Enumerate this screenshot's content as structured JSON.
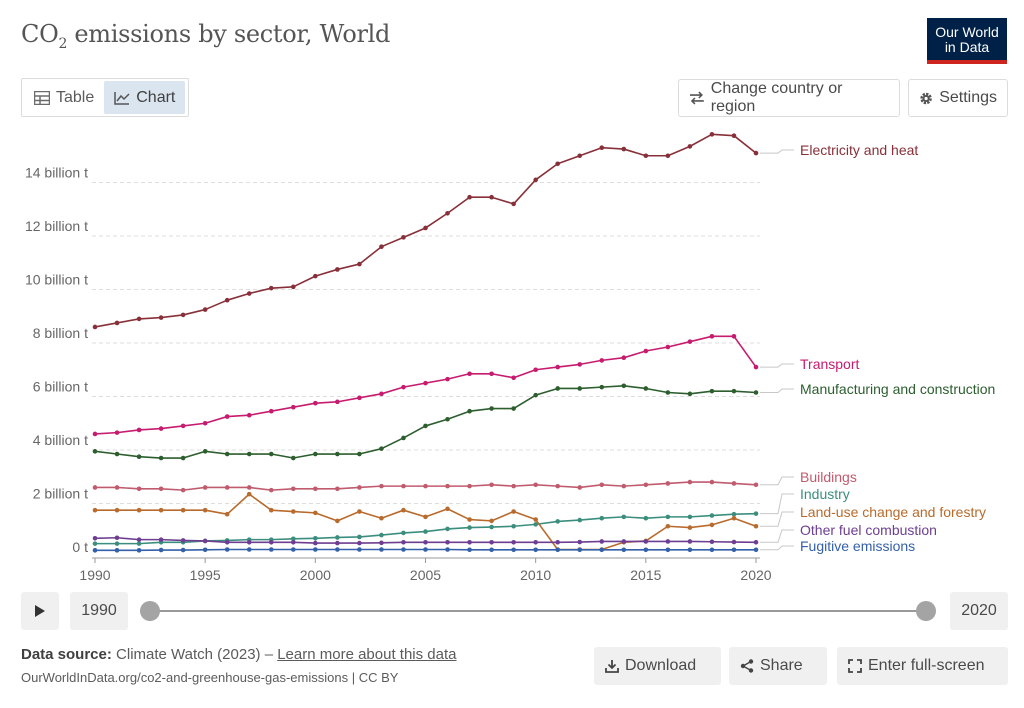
{
  "header": {
    "title_main": "CO",
    "title_sub": "2",
    "title_rest": " emissions by sector, World",
    "logo_line1": "Our World",
    "logo_line2": "in Data"
  },
  "tabs": [
    {
      "label": "Table",
      "icon": "table-icon"
    },
    {
      "label": "Chart",
      "icon": "line-chart-icon"
    }
  ],
  "toolbar": {
    "change_region_label": "Change country or region",
    "settings_label": "Settings"
  },
  "timeline": {
    "start_year": "1990",
    "end_year": "2020",
    "start_fraction": 0,
    "end_fraction": 1
  },
  "footer": {
    "source_label": "Data source:",
    "source_value": " Climate Watch (2023) – ",
    "learn_more": "Learn more about this data",
    "url": "OurWorldInData.org/co2-and-greenhouse-gas-emissions | CC BY",
    "download_label": "Download",
    "share_label": "Share",
    "fullscreen_label": "Enter full-screen"
  },
  "chart_data": {
    "type": "line",
    "x": [
      1990,
      1991,
      1992,
      1993,
      1994,
      1995,
      1996,
      1997,
      1998,
      1999,
      2000,
      2001,
      2002,
      2003,
      2004,
      2005,
      2006,
      2007,
      2008,
      2009,
      2010,
      2011,
      2012,
      2013,
      2014,
      2015,
      2016,
      2017,
      2018,
      2019,
      2020
    ],
    "xticks": [
      "1990",
      "1995",
      "2000",
      "2005",
      "2010",
      "2015",
      "2020"
    ],
    "yticks": [
      {
        "v": 0,
        "label": "0 t"
      },
      {
        "v": 2,
        "label": "2 billion t"
      },
      {
        "v": 4,
        "label": "4 billion t"
      },
      {
        "v": 6,
        "label": "6 billion t"
      },
      {
        "v": 8,
        "label": "8 billion t"
      },
      {
        "v": 10,
        "label": "10 billion t"
      },
      {
        "v": 12,
        "label": "12 billion t"
      },
      {
        "v": 14,
        "label": "14 billion t"
      }
    ],
    "ylim": [
      0,
      16
    ],
    "xlim": [
      1990,
      2020
    ],
    "grid": true,
    "legend": "right-labels",
    "series": [
      {
        "name": "Electricity and heat",
        "color": "#883039",
        "values": [
          8.6,
          8.75,
          8.9,
          8.95,
          9.05,
          9.25,
          9.6,
          9.85,
          10.05,
          10.1,
          10.5,
          10.75,
          10.95,
          11.6,
          11.95,
          12.3,
          12.85,
          13.45,
          13.45,
          13.2,
          14.1,
          14.7,
          15.0,
          15.3,
          15.25,
          15.0,
          15.0,
          15.35,
          15.8,
          15.75,
          15.1
        ]
      },
      {
        "name": "Transport",
        "color": "#c61b6e",
        "values": [
          4.6,
          4.65,
          4.75,
          4.8,
          4.9,
          5.0,
          5.25,
          5.3,
          5.45,
          5.6,
          5.75,
          5.8,
          5.95,
          6.1,
          6.35,
          6.5,
          6.65,
          6.85,
          6.85,
          6.7,
          7.0,
          7.1,
          7.2,
          7.35,
          7.45,
          7.7,
          7.85,
          8.05,
          8.25,
          8.25,
          7.1
        ]
      },
      {
        "name": "Manufacturing and construction",
        "color": "#2c5e2e",
        "values": [
          3.95,
          3.85,
          3.75,
          3.7,
          3.7,
          3.95,
          3.85,
          3.85,
          3.85,
          3.7,
          3.85,
          3.85,
          3.85,
          4.05,
          4.45,
          4.9,
          5.15,
          5.45,
          5.55,
          5.55,
          6.05,
          6.3,
          6.3,
          6.35,
          6.4,
          6.3,
          6.15,
          6.1,
          6.2,
          6.2,
          6.15
        ]
      },
      {
        "name": "Buildings",
        "color": "#c05b6e",
        "values": [
          2.6,
          2.6,
          2.55,
          2.55,
          2.5,
          2.6,
          2.6,
          2.6,
          2.5,
          2.55,
          2.55,
          2.55,
          2.6,
          2.65,
          2.65,
          2.65,
          2.65,
          2.65,
          2.7,
          2.65,
          2.7,
          2.65,
          2.6,
          2.7,
          2.65,
          2.7,
          2.75,
          2.8,
          2.8,
          2.75,
          2.7
        ]
      },
      {
        "name": "Industry",
        "color": "#3b8e7e",
        "values": [
          0.5,
          0.5,
          0.5,
          0.55,
          0.55,
          0.6,
          0.62,
          0.65,
          0.65,
          0.68,
          0.7,
          0.73,
          0.75,
          0.82,
          0.9,
          0.95,
          1.05,
          1.1,
          1.12,
          1.15,
          1.22,
          1.33,
          1.38,
          1.45,
          1.5,
          1.45,
          1.5,
          1.5,
          1.55,
          1.6,
          1.62
        ]
      },
      {
        "name": "Land-use change and forestry",
        "color": "#b86b2c",
        "values": [
          1.75,
          1.75,
          1.75,
          1.75,
          1.75,
          1.75,
          1.6,
          2.35,
          1.75,
          1.7,
          1.65,
          1.35,
          1.7,
          1.45,
          1.75,
          1.5,
          1.8,
          1.4,
          1.35,
          1.7,
          1.4,
          0.28,
          0.28,
          0.28,
          0.55,
          0.6,
          1.15,
          1.1,
          1.2,
          1.45,
          1.15
        ]
      },
      {
        "name": "Other fuel combustion",
        "color": "#6d3e91",
        "values": [
          0.7,
          0.72,
          0.65,
          0.65,
          0.62,
          0.6,
          0.55,
          0.55,
          0.55,
          0.55,
          0.52,
          0.52,
          0.52,
          0.53,
          0.55,
          0.55,
          0.55,
          0.55,
          0.55,
          0.55,
          0.55,
          0.55,
          0.56,
          0.58,
          0.58,
          0.58,
          0.58,
          0.58,
          0.57,
          0.56,
          0.55
        ]
      },
      {
        "name": "Fugitive emissions",
        "color": "#3360a9",
        "values": [
          0.25,
          0.25,
          0.25,
          0.26,
          0.26,
          0.27,
          0.28,
          0.28,
          0.28,
          0.28,
          0.28,
          0.28,
          0.28,
          0.28,
          0.28,
          0.28,
          0.28,
          0.27,
          0.27,
          0.27,
          0.27,
          0.27,
          0.27,
          0.27,
          0.27,
          0.27,
          0.27,
          0.27,
          0.27,
          0.27,
          0.27
        ]
      }
    ],
    "label_positions_order": [
      "Electricity and heat",
      "Transport",
      "Manufacturing and construction",
      "Buildings",
      "Industry",
      "Land-use change and forestry",
      "Other fuel combustion",
      "Fugitive emissions"
    ]
  }
}
